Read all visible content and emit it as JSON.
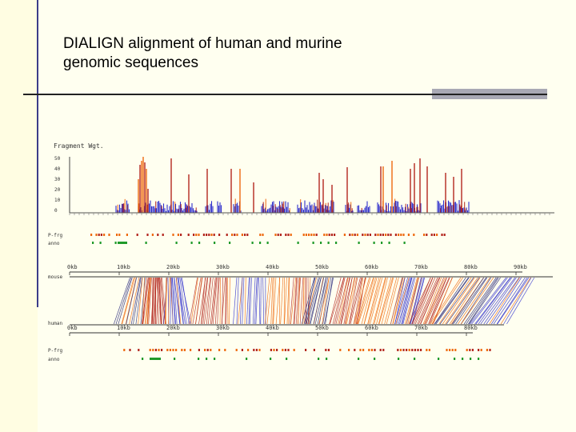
{
  "slide": {
    "title": "DIALIGN alignment of human and murine\ngenomic sequences"
  },
  "figure": {
    "panel_label": "Fragment Wgt.",
    "y_ticks": [
      "50",
      "40",
      "30",
      "20",
      "10",
      "0"
    ],
    "track_labels": {
      "top_frag": "P-frg",
      "top_anno": "anno",
      "mouse": "mouse",
      "human": "human",
      "bottom_frag": "P-frg",
      "bottom_anno": "anno"
    },
    "scale_top": [
      "0kb",
      "10kb",
      "20kb",
      "30kb",
      "40kb",
      "50kb",
      "60kb",
      "70kb",
      "80kb",
      "90kb"
    ],
    "scale_bottom": [
      "0kb",
      "10kb",
      "20kb",
      "30kb",
      "40kb",
      "50kb",
      "60kb",
      "70kb",
      "80kb"
    ],
    "colors": {
      "blue": "#2f2fcc",
      "red": "#b3261e",
      "orange": "#ee6a10",
      "green": "#1f9a2a",
      "navy": "#28287a"
    }
  }
}
